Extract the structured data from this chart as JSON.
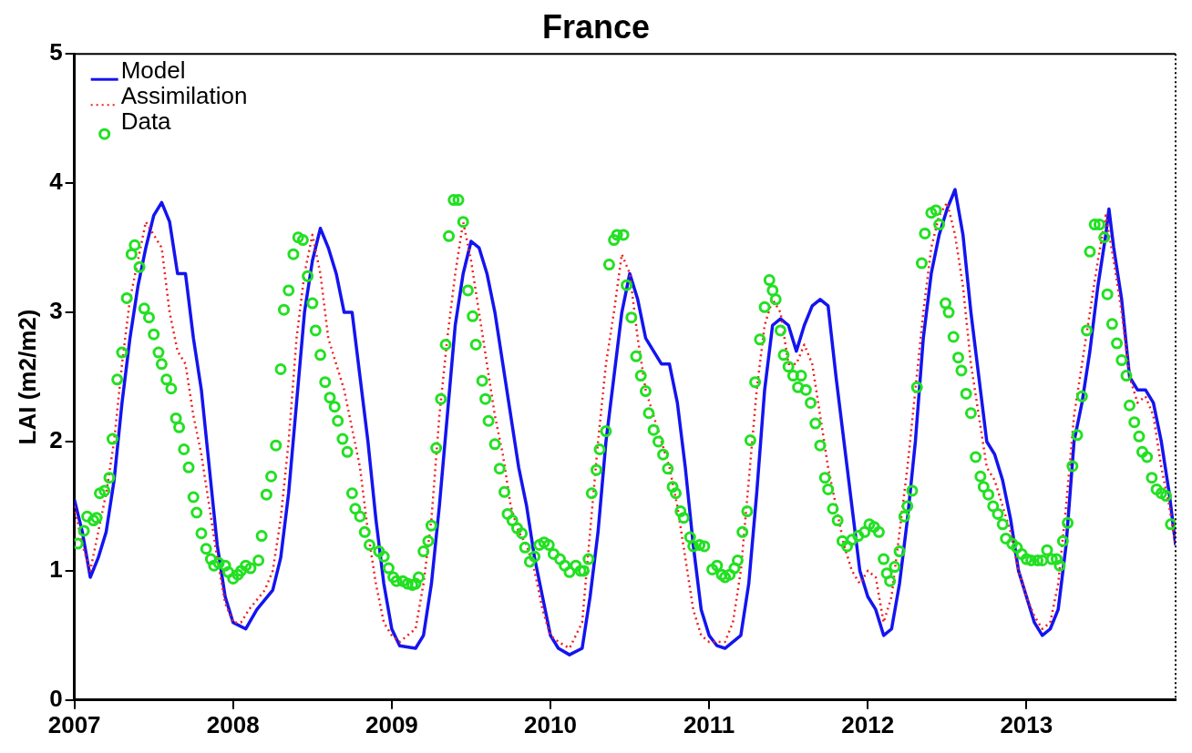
{
  "chart_data": {
    "type": "line",
    "title": "France",
    "ylabel": "LAI (m2/m2)",
    "xlim": [
      2007,
      2013.94
    ],
    "xticks": [
      2007,
      2008,
      2009,
      2010,
      2011,
      2012,
      2013
    ],
    "ylim": [
      0,
      5
    ],
    "yticks": [
      0,
      1,
      2,
      3,
      4,
      5
    ],
    "grid": false,
    "legend": "top left",
    "series": [
      {
        "name": "Model",
        "color": "#1414f0",
        "line_style": "solid",
        "x": [
          2007.0,
          2007.05,
          2007.1,
          2007.15,
          2007.2,
          2007.25,
          2007.3,
          2007.35,
          2007.4,
          2007.45,
          2007.5,
          2007.55,
          2007.6,
          2007.65,
          2007.7,
          2007.75,
          2007.8,
          2007.85,
          2007.9,
          2007.95,
          2008.0,
          2008.08,
          2008.15,
          2008.25,
          2008.3,
          2008.35,
          2008.4,
          2008.45,
          2008.5,
          2008.55,
          2008.6,
          2008.65,
          2008.7,
          2008.75,
          2008.8,
          2008.85,
          2008.9,
          2008.95,
          2009.0,
          2009.05,
          2009.15,
          2009.2,
          2009.25,
          2009.3,
          2009.35,
          2009.4,
          2009.45,
          2009.5,
          2009.55,
          2009.6,
          2009.65,
          2009.7,
          2009.75,
          2009.8,
          2009.85,
          2009.9,
          2009.95,
          2010.0,
          2010.05,
          2010.12,
          2010.2,
          2010.25,
          2010.3,
          2010.35,
          2010.4,
          2010.45,
          2010.5,
          2010.55,
          2010.6,
          2010.65,
          2010.7,
          2010.75,
          2010.8,
          2010.85,
          2010.9,
          2010.95,
          2011.0,
          2011.05,
          2011.1,
          2011.2,
          2011.25,
          2011.3,
          2011.35,
          2011.4,
          2011.45,
          2011.5,
          2011.55,
          2011.6,
          2011.65,
          2011.7,
          2011.75,
          2011.8,
          2011.85,
          2011.9,
          2011.95,
          2012.0,
          2012.05,
          2012.1,
          2012.15,
          2012.2,
          2012.25,
          2012.3,
          2012.35,
          2012.4,
          2012.45,
          2012.5,
          2012.55,
          2012.6,
          2012.65,
          2012.7,
          2012.75,
          2012.8,
          2012.85,
          2012.9,
          2012.95,
          2013.0,
          2013.05,
          2013.1,
          2013.15,
          2013.2,
          2013.25,
          2013.3,
          2013.35,
          2013.4,
          2013.45,
          2013.5,
          2013.52,
          2013.55,
          2013.6,
          2013.65,
          2013.7,
          2013.75,
          2013.8,
          2013.85,
          2013.9,
          2013.94
        ],
        "values": [
          1.55,
          1.3,
          0.95,
          1.1,
          1.3,
          1.7,
          2.3,
          2.8,
          3.2,
          3.5,
          3.75,
          3.85,
          3.7,
          3.3,
          3.3,
          2.8,
          2.4,
          1.8,
          1.2,
          0.8,
          0.6,
          0.55,
          0.7,
          0.85,
          1.1,
          1.6,
          2.3,
          3.0,
          3.4,
          3.65,
          3.5,
          3.3,
          3.0,
          3.0,
          2.5,
          2.0,
          1.4,
          0.9,
          0.55,
          0.42,
          0.4,
          0.5,
          0.9,
          1.5,
          2.2,
          2.9,
          3.3,
          3.55,
          3.5,
          3.3,
          3.0,
          2.6,
          2.2,
          1.8,
          1.5,
          1.1,
          0.8,
          0.5,
          0.4,
          0.35,
          0.4,
          0.8,
          1.3,
          2.0,
          2.5,
          3.0,
          3.3,
          3.1,
          2.8,
          2.7,
          2.6,
          2.6,
          2.3,
          1.8,
          1.2,
          0.7,
          0.5,
          0.42,
          0.4,
          0.5,
          0.9,
          1.6,
          2.4,
          2.9,
          2.95,
          2.9,
          2.7,
          2.9,
          3.05,
          3.1,
          3.05,
          2.5,
          2.0,
          1.5,
          1.0,
          0.8,
          0.7,
          0.5,
          0.55,
          0.9,
          1.4,
          2.0,
          2.8,
          3.3,
          3.6,
          3.8,
          3.95,
          3.6,
          3.0,
          2.5,
          2.0,
          1.9,
          1.7,
          1.4,
          1.0,
          0.8,
          0.6,
          0.5,
          0.55,
          0.7,
          1.2,
          2.0,
          2.3,
          2.7,
          3.2,
          3.6,
          3.8,
          3.5,
          3.1,
          2.5,
          2.4,
          2.4,
          2.3,
          2.0,
          1.6,
          1.2
        ]
      },
      {
        "name": "Assimilation",
        "color": "#f02020",
        "line_style": "dotted",
        "x": [
          2007.0,
          2007.05,
          2007.1,
          2007.15,
          2007.2,
          2007.25,
          2007.3,
          2007.35,
          2007.4,
          2007.45,
          2007.5,
          2007.55,
          2007.6,
          2007.65,
          2007.7,
          2007.75,
          2007.8,
          2007.85,
          2007.9,
          2007.95,
          2008.0,
          2008.05,
          2008.1,
          2008.2,
          2008.25,
          2008.3,
          2008.35,
          2008.4,
          2008.45,
          2008.5,
          2008.55,
          2008.6,
          2008.65,
          2008.7,
          2008.75,
          2008.8,
          2008.85,
          2008.9,
          2008.95,
          2009.0,
          2009.05,
          2009.15,
          2009.2,
          2009.25,
          2009.3,
          2009.35,
          2009.4,
          2009.45,
          2009.5,
          2009.55,
          2009.6,
          2009.65,
          2009.7,
          2009.75,
          2009.8,
          2009.85,
          2009.9,
          2009.95,
          2010.0,
          2010.05,
          2010.12,
          2010.2,
          2010.25,
          2010.3,
          2010.35,
          2010.4,
          2010.45,
          2010.5,
          2010.55,
          2010.6,
          2010.65,
          2010.7,
          2010.75,
          2010.8,
          2010.85,
          2010.9,
          2010.95,
          2011.0,
          2011.1,
          2011.15,
          2011.2,
          2011.25,
          2011.3,
          2011.35,
          2011.4,
          2011.45,
          2011.5,
          2011.55,
          2011.6,
          2011.65,
          2011.7,
          2011.75,
          2011.8,
          2011.85,
          2011.9,
          2011.95,
          2012.0,
          2012.05,
          2012.1,
          2012.15,
          2012.2,
          2012.25,
          2012.3,
          2012.35,
          2012.4,
          2012.45,
          2012.5,
          2012.55,
          2012.6,
          2012.65,
          2012.7,
          2012.75,
          2012.8,
          2012.85,
          2012.9,
          2012.95,
          2013.0,
          2013.05,
          2013.1,
          2013.15,
          2013.2,
          2013.25,
          2013.3,
          2013.35,
          2013.4,
          2013.45,
          2013.5,
          2013.55,
          2013.6,
          2013.65,
          2013.7,
          2013.75,
          2013.8,
          2013.85,
          2013.9,
          2013.94
        ],
        "values": [
          1.5,
          1.2,
          1.0,
          1.3,
          1.6,
          2.0,
          2.6,
          3.1,
          3.4,
          3.7,
          3.6,
          3.5,
          3.0,
          2.7,
          2.6,
          2.2,
          1.9,
          1.5,
          1.1,
          0.75,
          0.6,
          0.6,
          0.7,
          0.85,
          1.0,
          1.4,
          2.0,
          2.8,
          3.3,
          3.6,
          3.3,
          2.8,
          2.6,
          2.4,
          2.1,
          1.8,
          1.3,
          0.9,
          0.6,
          0.5,
          0.45,
          0.55,
          0.9,
          1.4,
          2.2,
          2.8,
          3.3,
          3.7,
          3.4,
          3.0,
          2.6,
          2.2,
          1.9,
          1.5,
          1.3,
          1.2,
          1.0,
          0.7,
          0.5,
          0.45,
          0.4,
          0.6,
          1.3,
          2.0,
          2.6,
          3.0,
          3.45,
          3.3,
          2.8,
          2.4,
          2.2,
          2.0,
          1.8,
          1.5,
          1.1,
          0.7,
          0.5,
          0.45,
          0.45,
          0.6,
          1.0,
          1.7,
          2.4,
          2.9,
          3.1,
          3.0,
          2.6,
          2.6,
          2.75,
          2.6,
          2.2,
          1.8,
          1.5,
          1.2,
          1.0,
          0.9,
          1.0,
          0.95,
          0.6,
          0.8,
          1.3,
          1.8,
          2.4,
          3.0,
          3.5,
          3.75,
          3.85,
          3.6,
          3.2,
          2.6,
          2.2,
          1.8,
          1.7,
          1.5,
          1.3,
          1.0,
          0.8,
          0.65,
          0.55,
          0.6,
          0.9,
          1.5,
          2.2,
          2.6,
          3.0,
          3.4,
          3.75,
          3.4,
          3.0,
          2.5,
          2.3,
          2.35,
          2.2,
          1.8,
          1.5,
          1.2
        ]
      },
      {
        "name": "Data",
        "type": "scatter",
        "color": "#22e022",
        "marker": "circle",
        "x": [
          2007.02,
          2007.06,
          2007.08,
          2007.12,
          2007.14,
          2007.16,
          2007.19,
          2007.22,
          2007.24,
          2007.27,
          2007.3,
          2007.33,
          2007.36,
          2007.38,
          2007.41,
          2007.44,
          2007.47,
          2007.5,
          2007.53,
          2007.55,
          2007.58,
          2007.61,
          2007.64,
          2007.66,
          2007.69,
          2007.72,
          2007.75,
          2007.77,
          2007.8,
          2007.83,
          2007.86,
          2007.88,
          2007.91,
          2007.95,
          2007.97,
          2008.0,
          2008.03,
          2008.05,
          2008.08,
          2008.11,
          2008.16,
          2008.18,
          2008.21,
          2008.24,
          2008.27,
          2008.3,
          2008.32,
          2008.35,
          2008.38,
          2008.41,
          2008.44,
          2008.47,
          2008.5,
          2008.52,
          2008.55,
          2008.58,
          2008.61,
          2008.64,
          2008.66,
          2008.69,
          2008.72,
          2008.75,
          2008.77,
          2008.8,
          2008.83,
          2008.86,
          2008.92,
          2008.95,
          2008.98,
          2009.01,
          2009.03,
          2009.07,
          2009.1,
          2009.13,
          2009.15,
          2009.17,
          2009.2,
          2009.23,
          2009.25,
          2009.28,
          2009.31,
          2009.34,
          2009.36,
          2009.39,
          2009.42,
          2009.45,
          2009.48,
          2009.51,
          2009.53,
          2009.57,
          2009.59,
          2009.61,
          2009.65,
          2009.68,
          2009.71,
          2009.73,
          2009.76,
          2009.79,
          2009.82,
          2009.84,
          2009.87,
          2009.9,
          2009.93,
          2009.96,
          2009.99,
          2010.02,
          2010.06,
          2010.09,
          2010.12,
          2010.16,
          2010.19,
          2010.21,
          2010.24,
          2010.26,
          2010.29,
          2010.31,
          2010.35,
          2010.37,
          2010.4,
          2010.42,
          2010.46,
          2010.48,
          2010.51,
          2010.54,
          2010.57,
          2010.6,
          2010.62,
          2010.65,
          2010.68,
          2010.71,
          2010.74,
          2010.77,
          2010.79,
          2010.82,
          2010.84,
          2010.88,
          2010.9,
          2010.94,
          2010.97,
          2011.02,
          2011.05,
          2011.08,
          2011.1,
          2011.13,
          2011.16,
          2011.18,
          2011.21,
          2011.24,
          2011.26,
          2011.29,
          2011.32,
          2011.35,
          2011.38,
          2011.4,
          2011.42,
          2011.45,
          2011.47,
          2011.5,
          2011.53,
          2011.56,
          2011.58,
          2011.61,
          2011.64,
          2011.67,
          2011.7,
          2011.73,
          2011.75,
          2011.78,
          2011.81,
          2011.84,
          2011.87,
          2011.9,
          2011.94,
          2011.98,
          2012.01,
          2012.04,
          2012.07,
          2012.1,
          2012.12,
          2012.14,
          2012.17,
          2012.2,
          2012.23,
          2012.25,
          2012.28,
          2012.31,
          2012.34,
          2012.36,
          2012.4,
          2012.43,
          2012.45,
          2012.49,
          2012.51,
          2012.54,
          2012.57,
          2012.59,
          2012.62,
          2012.65,
          2012.68,
          2012.71,
          2012.73,
          2012.76,
          2012.79,
          2012.82,
          2012.85,
          2012.87,
          2012.91,
          2012.94,
          2012.97,
          2013.0,
          2013.03,
          2013.07,
          2013.1,
          2013.13,
          2013.16,
          2013.19,
          2013.21,
          2013.23,
          2013.26,
          2013.29,
          2013.32,
          2013.35,
          2013.38,
          2013.4,
          2013.43,
          2013.46,
          2013.49,
          2013.51,
          2013.54,
          2013.57,
          2013.6,
          2013.63,
          2013.65,
          2013.68,
          2013.71,
          2013.73,
          2013.76,
          2013.79,
          2013.82,
          2013.85,
          2013.88,
          2013.91
        ],
        "values": [
          1.21,
          1.31,
          1.42,
          1.39,
          1.41,
          1.6,
          1.62,
          1.72,
          2.02,
          2.48,
          2.69,
          3.11,
          3.45,
          3.52,
          3.35,
          3.03,
          2.96,
          2.83,
          2.69,
          2.6,
          2.48,
          2.41,
          2.18,
          2.11,
          1.94,
          1.8,
          1.57,
          1.45,
          1.29,
          1.17,
          1.09,
          1.04,
          1.06,
          1.04,
          0.99,
          0.94,
          0.97,
          1.0,
          1.04,
          1.02,
          1.08,
          1.27,
          1.59,
          1.73,
          1.97,
          2.56,
          3.02,
          3.17,
          3.45,
          3.58,
          3.56,
          3.28,
          3.07,
          2.86,
          2.67,
          2.46,
          2.34,
          2.27,
          2.16,
          2.02,
          1.92,
          1.6,
          1.48,
          1.42,
          1.3,
          1.2,
          1.15,
          1.11,
          1.02,
          0.95,
          0.92,
          0.92,
          0.9,
          0.89,
          0.9,
          0.95,
          1.15,
          1.23,
          1.35,
          1.95,
          2.33,
          2.75,
          3.59,
          3.87,
          3.87,
          3.7,
          3.17,
          2.97,
          2.75,
          2.47,
          2.33,
          2.16,
          1.98,
          1.79,
          1.61,
          1.44,
          1.39,
          1.33,
          1.29,
          1.18,
          1.07,
          1.11,
          1.2,
          1.22,
          1.2,
          1.13,
          1.09,
          1.04,
          0.99,
          1.04,
          1.0,
          1.0,
          1.09,
          1.6,
          1.78,
          1.94,
          2.08,
          3.37,
          3.56,
          3.6,
          3.6,
          3.21,
          2.96,
          2.66,
          2.51,
          2.39,
          2.22,
          2.09,
          2.0,
          1.9,
          1.79,
          1.65,
          1.6,
          1.46,
          1.41,
          1.26,
          1.19,
          1.2,
          1.19,
          1.01,
          1.04,
          0.97,
          0.95,
          0.97,
          1.02,
          1.08,
          1.3,
          1.46,
          2.01,
          2.46,
          2.79,
          3.04,
          3.25,
          3.17,
          3.1,
          2.86,
          2.67,
          2.58,
          2.51,
          2.42,
          2.51,
          2.4,
          2.3,
          2.14,
          1.97,
          1.72,
          1.63,
          1.48,
          1.39,
          1.23,
          1.19,
          1.24,
          1.27,
          1.3,
          1.36,
          1.34,
          1.3,
          1.09,
          0.98,
          0.92,
          1.03,
          1.15,
          1.42,
          1.5,
          1.62,
          2.42,
          3.38,
          3.61,
          3.77,
          3.79,
          3.68,
          3.07,
          3.0,
          2.81,
          2.65,
          2.55,
          2.37,
          2.22,
          1.88,
          1.73,
          1.65,
          1.59,
          1.5,
          1.44,
          1.36,
          1.25,
          1.21,
          1.18,
          1.13,
          1.09,
          1.08,
          1.08,
          1.08,
          1.16,
          1.09,
          1.09,
          1.04,
          1.23,
          1.37,
          1.81,
          2.05,
          2.35,
          2.86,
          3.47,
          3.68,
          3.68,
          3.58,
          3.14,
          2.91,
          2.76,
          2.63,
          2.51,
          2.28,
          2.15,
          2.04,
          1.92,
          1.88,
          1.72,
          1.63,
          1.6,
          1.58,
          1.36
        ]
      }
    ]
  }
}
